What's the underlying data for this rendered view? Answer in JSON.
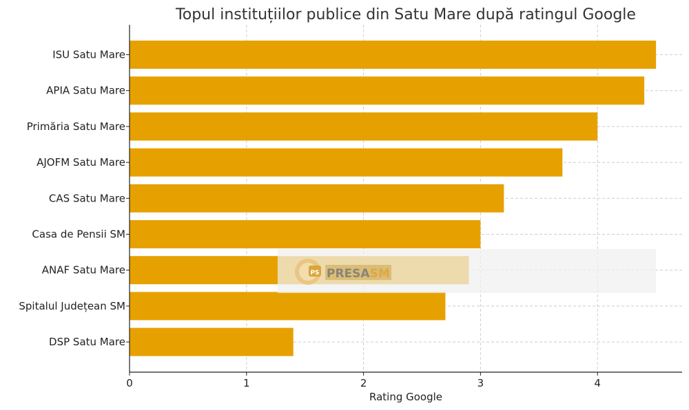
{
  "chart_data": {
    "type": "bar",
    "orientation": "horizontal",
    "title": "Topul instituțiilor publice din Satu Mare după ratingul Google",
    "xlabel": "Rating Google",
    "ylabel": "",
    "xlim": [
      0,
      4.7
    ],
    "x_ticks": [
      0,
      1,
      2,
      3,
      4
    ],
    "grid": true,
    "bar_color": "#E6A100",
    "categories": [
      "ISU Satu Mare",
      "APIA Satu Mare",
      "Primăria Satu Mare",
      "AJOFM Satu Mare",
      "CAS Satu Mare",
      "Casa de Pensii SM",
      "ANAF Satu Mare",
      "Spitalul Județean SM",
      "DSP Satu Mare"
    ],
    "values": [
      4.5,
      4.4,
      4.0,
      3.7,
      3.2,
      3.0,
      2.9,
      2.7,
      1.4
    ]
  },
  "watermark": {
    "text_main": "PRESA",
    "text_accent": "SM",
    "badge": "PS"
  }
}
